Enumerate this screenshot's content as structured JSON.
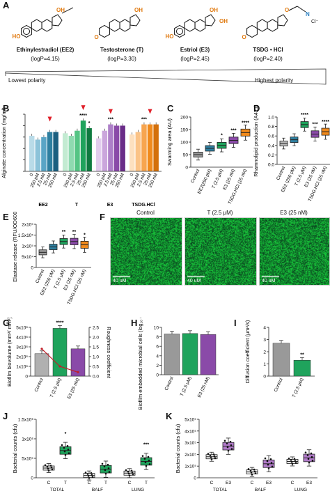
{
  "panels": {
    "A": "A",
    "B": "B",
    "C": "C",
    "D": "D",
    "E": "E",
    "F": "F",
    "G": "G",
    "H": "H",
    "I": "I",
    "J": "J",
    "K": "K"
  },
  "compounds": [
    {
      "name": "Ethinylestradiol (EE2)",
      "logp": "(logP=4.15)"
    },
    {
      "name": "Testosterone (T)",
      "logp": "(logP=3.30)"
    },
    {
      "name": "Estriol (E3)",
      "logp": "(logP=2.45)"
    },
    {
      "name": "TSDG • HCl",
      "logp": "(logP=2.40)"
    }
  ],
  "polarity": {
    "low": "Lowest polarity",
    "high": "Highest polarity"
  },
  "colors": {
    "ee2": "#2e7fa0",
    "t": "#1fa35c",
    "e3": "#8a4aa8",
    "tsdg": "#f08a1c",
    "control": "#999999",
    "arrow": "#e0202a",
    "heteroatom": "#e07a10"
  },
  "chart_data": [
    {
      "panel": "B",
      "type": "bar",
      "ylabel": "Alginate concentration (mg/ml)",
      "ylim": [
        0.3,
        0.75
      ],
      "groups": [
        "EE2",
        "T",
        "E3",
        "TSDG.HCl"
      ],
      "categories": [
        "0",
        "250 pM",
        "2.5 nM",
        "25 nM",
        "250 nM",
        "0",
        "250 pM",
        "2.5 nM",
        "25 nM",
        "250 nM",
        "0",
        "250 pM",
        "2.5 nM",
        "25 nM",
        "250 nM",
        "0",
        "250 pM",
        "2.5 nM",
        "25 nM",
        "250 nM"
      ],
      "values": [
        0.58,
        0.55,
        0.57,
        0.61,
        0.61,
        0.6,
        0.58,
        0.62,
        0.7,
        0.64,
        0.56,
        0.62,
        0.67,
        0.66,
        0.66,
        0.59,
        0.61,
        0.67,
        0.67,
        0.67
      ],
      "sig": [
        "",
        "",
        "",
        "",
        "",
        "",
        "",
        "",
        "****",
        "*",
        "",
        "",
        "***",
        "",
        "",
        "",
        "",
        "***",
        "",
        ""
      ]
    },
    {
      "panel": "C",
      "type": "box",
      "ylabel": "Swarming area (AU)",
      "ylim": [
        0,
        200
      ],
      "yticks": [
        "0",
        "50",
        "100",
        "150",
        "200"
      ],
      "categories": [
        "Control",
        "EE2(250 pM)",
        "T (2.5 μM)",
        "E3 (25 nM)",
        "TSDG.HCl (25 nM)"
      ],
      "medians": [
        50,
        75,
        87,
        107,
        138
      ],
      "sig": [
        "",
        "",
        "*",
        "***",
        "****"
      ]
    },
    {
      "panel": "D",
      "type": "box",
      "ylabel": "Rhamnolipid production (A421)",
      "ylim": [
        0.0,
        1.0
      ],
      "yticks": [
        "0.0",
        "0.2",
        "0.4",
        "0.6",
        "0.8",
        "1.0"
      ],
      "categories": [
        "Control",
        "EE2 (250 pM)",
        "T (2.5 μM)",
        "E3 (25 nM)",
        "TSDG.HCl (25 nM)"
      ],
      "medians": [
        0.44,
        0.52,
        0.84,
        0.64,
        0.69
      ],
      "sig": [
        "",
        "",
        "****",
        "***",
        "****"
      ]
    },
    {
      "panel": "E",
      "type": "box",
      "ylabel": "Elastase release (RFU/OD600)",
      "yticks": [
        "0",
        "5x10⁴",
        "1x10⁵",
        "1.5x10⁵",
        "2x10⁵"
      ],
      "categories": [
        "Control",
        "EE2 (250 pM)",
        "T (2.5 μM)",
        "E3 (25 nM)",
        "TSDG.HCl (25 nM)"
      ],
      "medians": [
        70000,
        95000,
        120000,
        120000,
        105000
      ],
      "sig": [
        "",
        "",
        "**",
        "**",
        "*"
      ]
    },
    {
      "panel": "G",
      "type": "bar",
      "ylabel": "Biofilm biovolume (mm³/ mm²)",
      "y2label": "Roughness coefficient",
      "yticks": [
        "0",
        "1x10⁶",
        "2x10⁶",
        "3x10⁶",
        "4x10⁶",
        "5x10⁶"
      ],
      "y2ticks": [
        "0.0",
        "0.5",
        "1.0",
        "1.5",
        "2.0",
        "2.5"
      ],
      "categories": [
        "Control",
        "T (2.5 μM)",
        "E3 (25 nM)"
      ],
      "values": [
        2300000,
        4900000,
        2800000
      ],
      "roughness": [
        1.4,
        0.5,
        0.2
      ],
      "sig": [
        "",
        "****",
        ""
      ]
    },
    {
      "panel": "H",
      "type": "bar",
      "ylabel": "Biofilm embedded microbial cells (log₁₀ cfu/ beads)",
      "ylim": [
        0,
        10
      ],
      "yticks": [
        "0",
        "2",
        "4",
        "6",
        "8",
        "10"
      ],
      "categories": [
        "Control",
        "T (2.5 μM)",
        "E3 (25 nM)"
      ],
      "values": [
        8.6,
        8.7,
        8.5
      ]
    },
    {
      "panel": "I",
      "type": "bar",
      "ylabel": "Diffusion coefficient (μm²/s)",
      "ylim": [
        0,
        4
      ],
      "yticks": [
        "0",
        "1",
        "2",
        "3",
        "4"
      ],
      "categories": [
        "Control",
        "T (2.5 μM)"
      ],
      "values": [
        2.7,
        1.3
      ],
      "sig": [
        "",
        "**"
      ]
    },
    {
      "panel": "J",
      "type": "box",
      "ylabel": "Bacterial counts (cfu)",
      "yticks": [
        "0",
        "5x10⁵",
        "1x10⁶",
        "1.5x10⁶"
      ],
      "groups": [
        "TOTAL",
        "BALF",
        "LUNG"
      ],
      "categories": [
        "C",
        "T",
        "C",
        "T",
        "C",
        "T"
      ],
      "medians": [
        250000,
        700000,
        60000,
        220000,
        120000,
        420000
      ],
      "sig": [
        "",
        "*",
        "",
        "",
        "",
        "***"
      ]
    },
    {
      "panel": "K",
      "type": "box",
      "ylabel": "Bacterial counts (cfu)",
      "yticks": [
        "0",
        "1x10⁵",
        "2x10⁵",
        "3x10⁵",
        "4x10⁵",
        "5x10⁵"
      ],
      "groups": [
        "TOTAL",
        "BALF",
        "LUNG"
      ],
      "categories": [
        "C",
        "E3",
        "C",
        "E3",
        "C",
        "E3"
      ],
      "medians": [
        180000,
        270000,
        50000,
        120000,
        140000,
        170000
      ]
    }
  ],
  "microscopy": {
    "captions": [
      "Control",
      "T (2.5 μM)",
      "E3 (25 nM)"
    ],
    "scale": "40 uM"
  }
}
